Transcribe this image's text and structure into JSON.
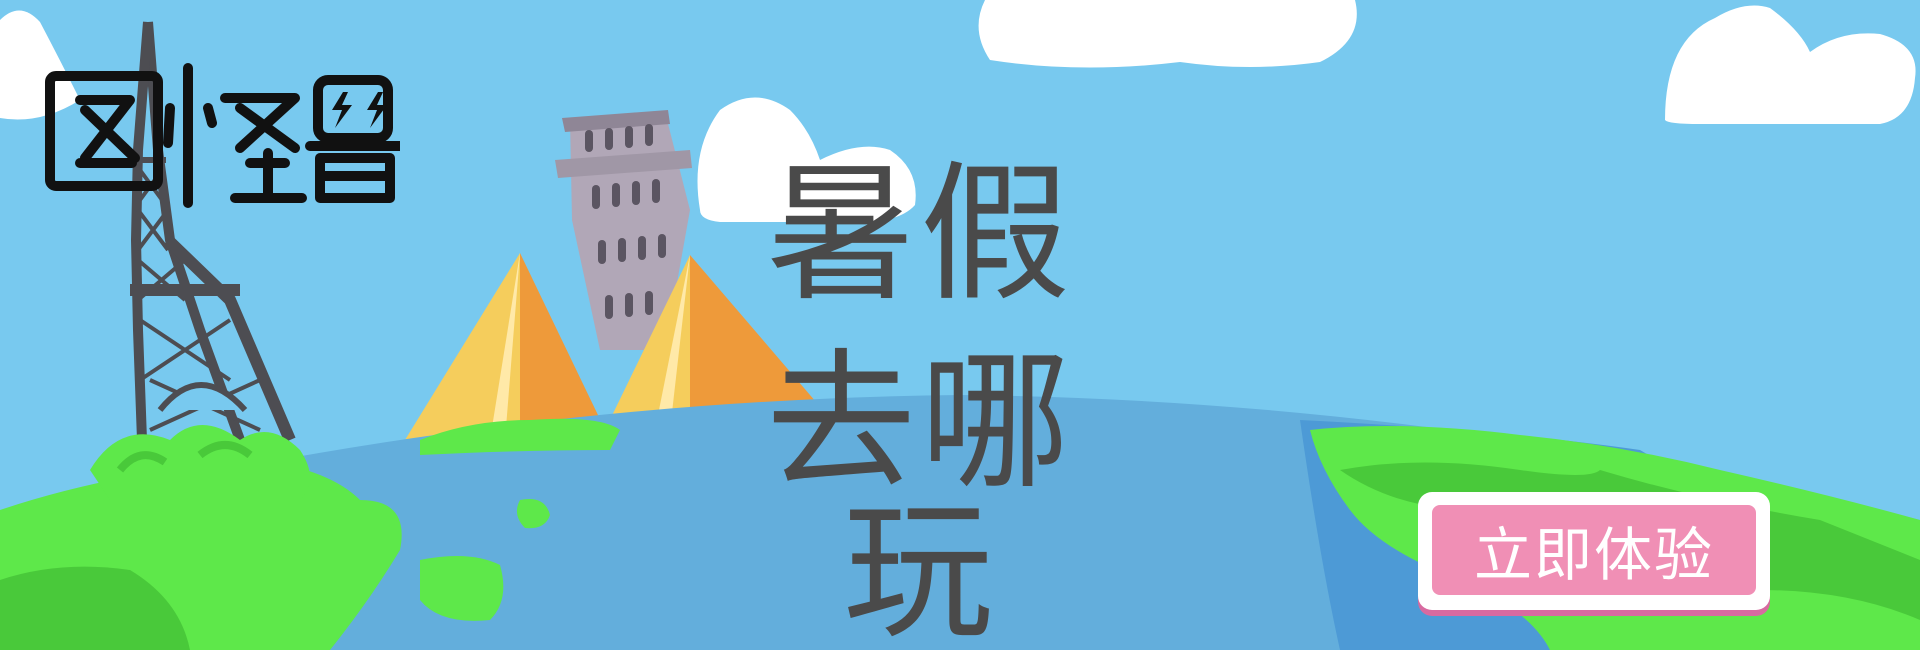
{
  "brand": {
    "logo_text": "图怪兽"
  },
  "headline": {
    "line1": "暑假",
    "line2": "去哪玩"
  },
  "cta": {
    "label": "立即体验"
  },
  "colors": {
    "sky": "#78c9ef",
    "ocean": "#63aedc",
    "land": "#5ee84a",
    "cta_bg": "#f08fb5",
    "text": "#4a4a4a"
  }
}
